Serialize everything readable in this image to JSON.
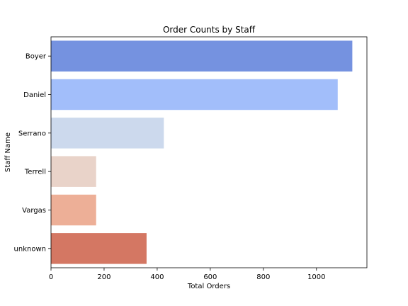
{
  "chart_data": {
    "type": "bar",
    "orientation": "horizontal",
    "title": "Order Counts by Staff",
    "xlabel": "Total Orders",
    "ylabel": "Staff Name",
    "categories": [
      "Boyer",
      "Daniel",
      "Serrano",
      "Terrell",
      "Vargas",
      "unknown"
    ],
    "values": [
      1135,
      1080,
      425,
      170,
      170,
      360
    ],
    "xlim": [
      0,
      1190
    ],
    "xticks": [
      0,
      200,
      400,
      600,
      800,
      1000
    ],
    "colors": [
      "#7592e0",
      "#a2befa",
      "#ccd9ed",
      "#e9d3c9",
      "#edaf97",
      "#d47763"
    ],
    "grid": false,
    "legend": "none"
  }
}
